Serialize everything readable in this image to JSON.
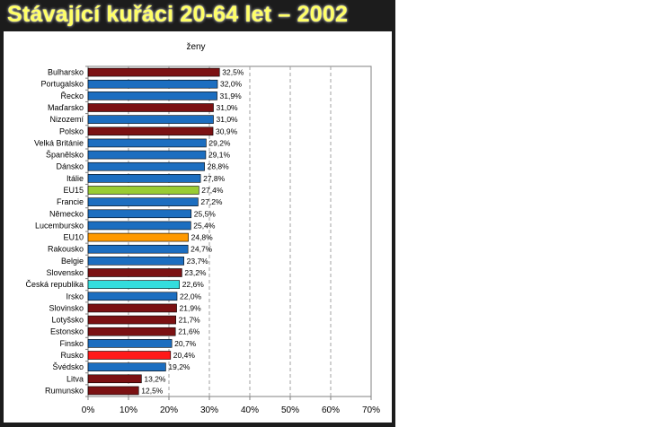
{
  "slide": {
    "title": "Stávající kuřáci 20-64 let – 2002"
  },
  "chart_data": {
    "type": "bar",
    "orientation": "horizontal",
    "title": "ženy",
    "categories": [
      "Bulharsko",
      "Portugalsko",
      "Řecko",
      "Maďarsko",
      "Nizozemí",
      "Polsko",
      "Velká Británie",
      "Španělsko",
      "Dánsko",
      "Itálie",
      "EU15",
      "Francie",
      "Německo",
      "Lucembursko",
      "EU10",
      "Rakousko",
      "Belgie",
      "Slovensko",
      "Česká republika",
      "Irsko",
      "Slovinsko",
      "Lotyšsko",
      "Estonsko",
      "Finsko",
      "Rusko",
      "Švédsko",
      "Litva",
      "Rumunsko"
    ],
    "values": [
      32.5,
      32.0,
      31.9,
      31.0,
      31.0,
      30.9,
      29.2,
      29.1,
      28.8,
      27.8,
      27.4,
      27.2,
      25.5,
      25.4,
      24.8,
      24.7,
      23.7,
      23.2,
      22.6,
      22.0,
      21.9,
      21.7,
      21.6,
      20.7,
      20.4,
      19.2,
      13.2,
      12.5
    ],
    "value_labels": [
      "32,5%",
      "32,0%",
      "31,9%",
      "31,0%",
      "31,0%",
      "30,9%",
      "29,2%",
      "29,1%",
      "28,8%",
      "27,8%",
      "27,4%",
      "27,2%",
      "25,5%",
      "25,4%",
      "24,8%",
      "24,7%",
      "23,7%",
      "23,2%",
      "22,6%",
      "22,0%",
      "21,9%",
      "21,7%",
      "21,6%",
      "20,7%",
      "20,4%",
      "19,2%",
      "13,2%",
      "12,5%"
    ],
    "bar_colors": [
      "#7b1113",
      "#1c6ec0",
      "#1c6ec0",
      "#7b1113",
      "#1c6ec0",
      "#7b1113",
      "#1c6ec0",
      "#1c6ec0",
      "#1c6ec0",
      "#1c6ec0",
      "#99cc33",
      "#1c6ec0",
      "#1c6ec0",
      "#1c6ec0",
      "#ff9900",
      "#1c6ec0",
      "#1c6ec0",
      "#7b1113",
      "#33dddd",
      "#1c6ec0",
      "#7b1113",
      "#7b1113",
      "#7b1113",
      "#1c6ec0",
      "#ff1a1a",
      "#1c6ec0",
      "#7b1113",
      "#7b1113"
    ],
    "x_ticks": [
      0,
      10,
      20,
      30,
      40,
      50,
      60,
      70
    ],
    "x_tick_labels": [
      "0%",
      "10%",
      "20%",
      "30%",
      "40%",
      "50%",
      "60%",
      "70%"
    ],
    "xlim": [
      0,
      70
    ],
    "grid": "vertical dashed",
    "legend": "none"
  }
}
